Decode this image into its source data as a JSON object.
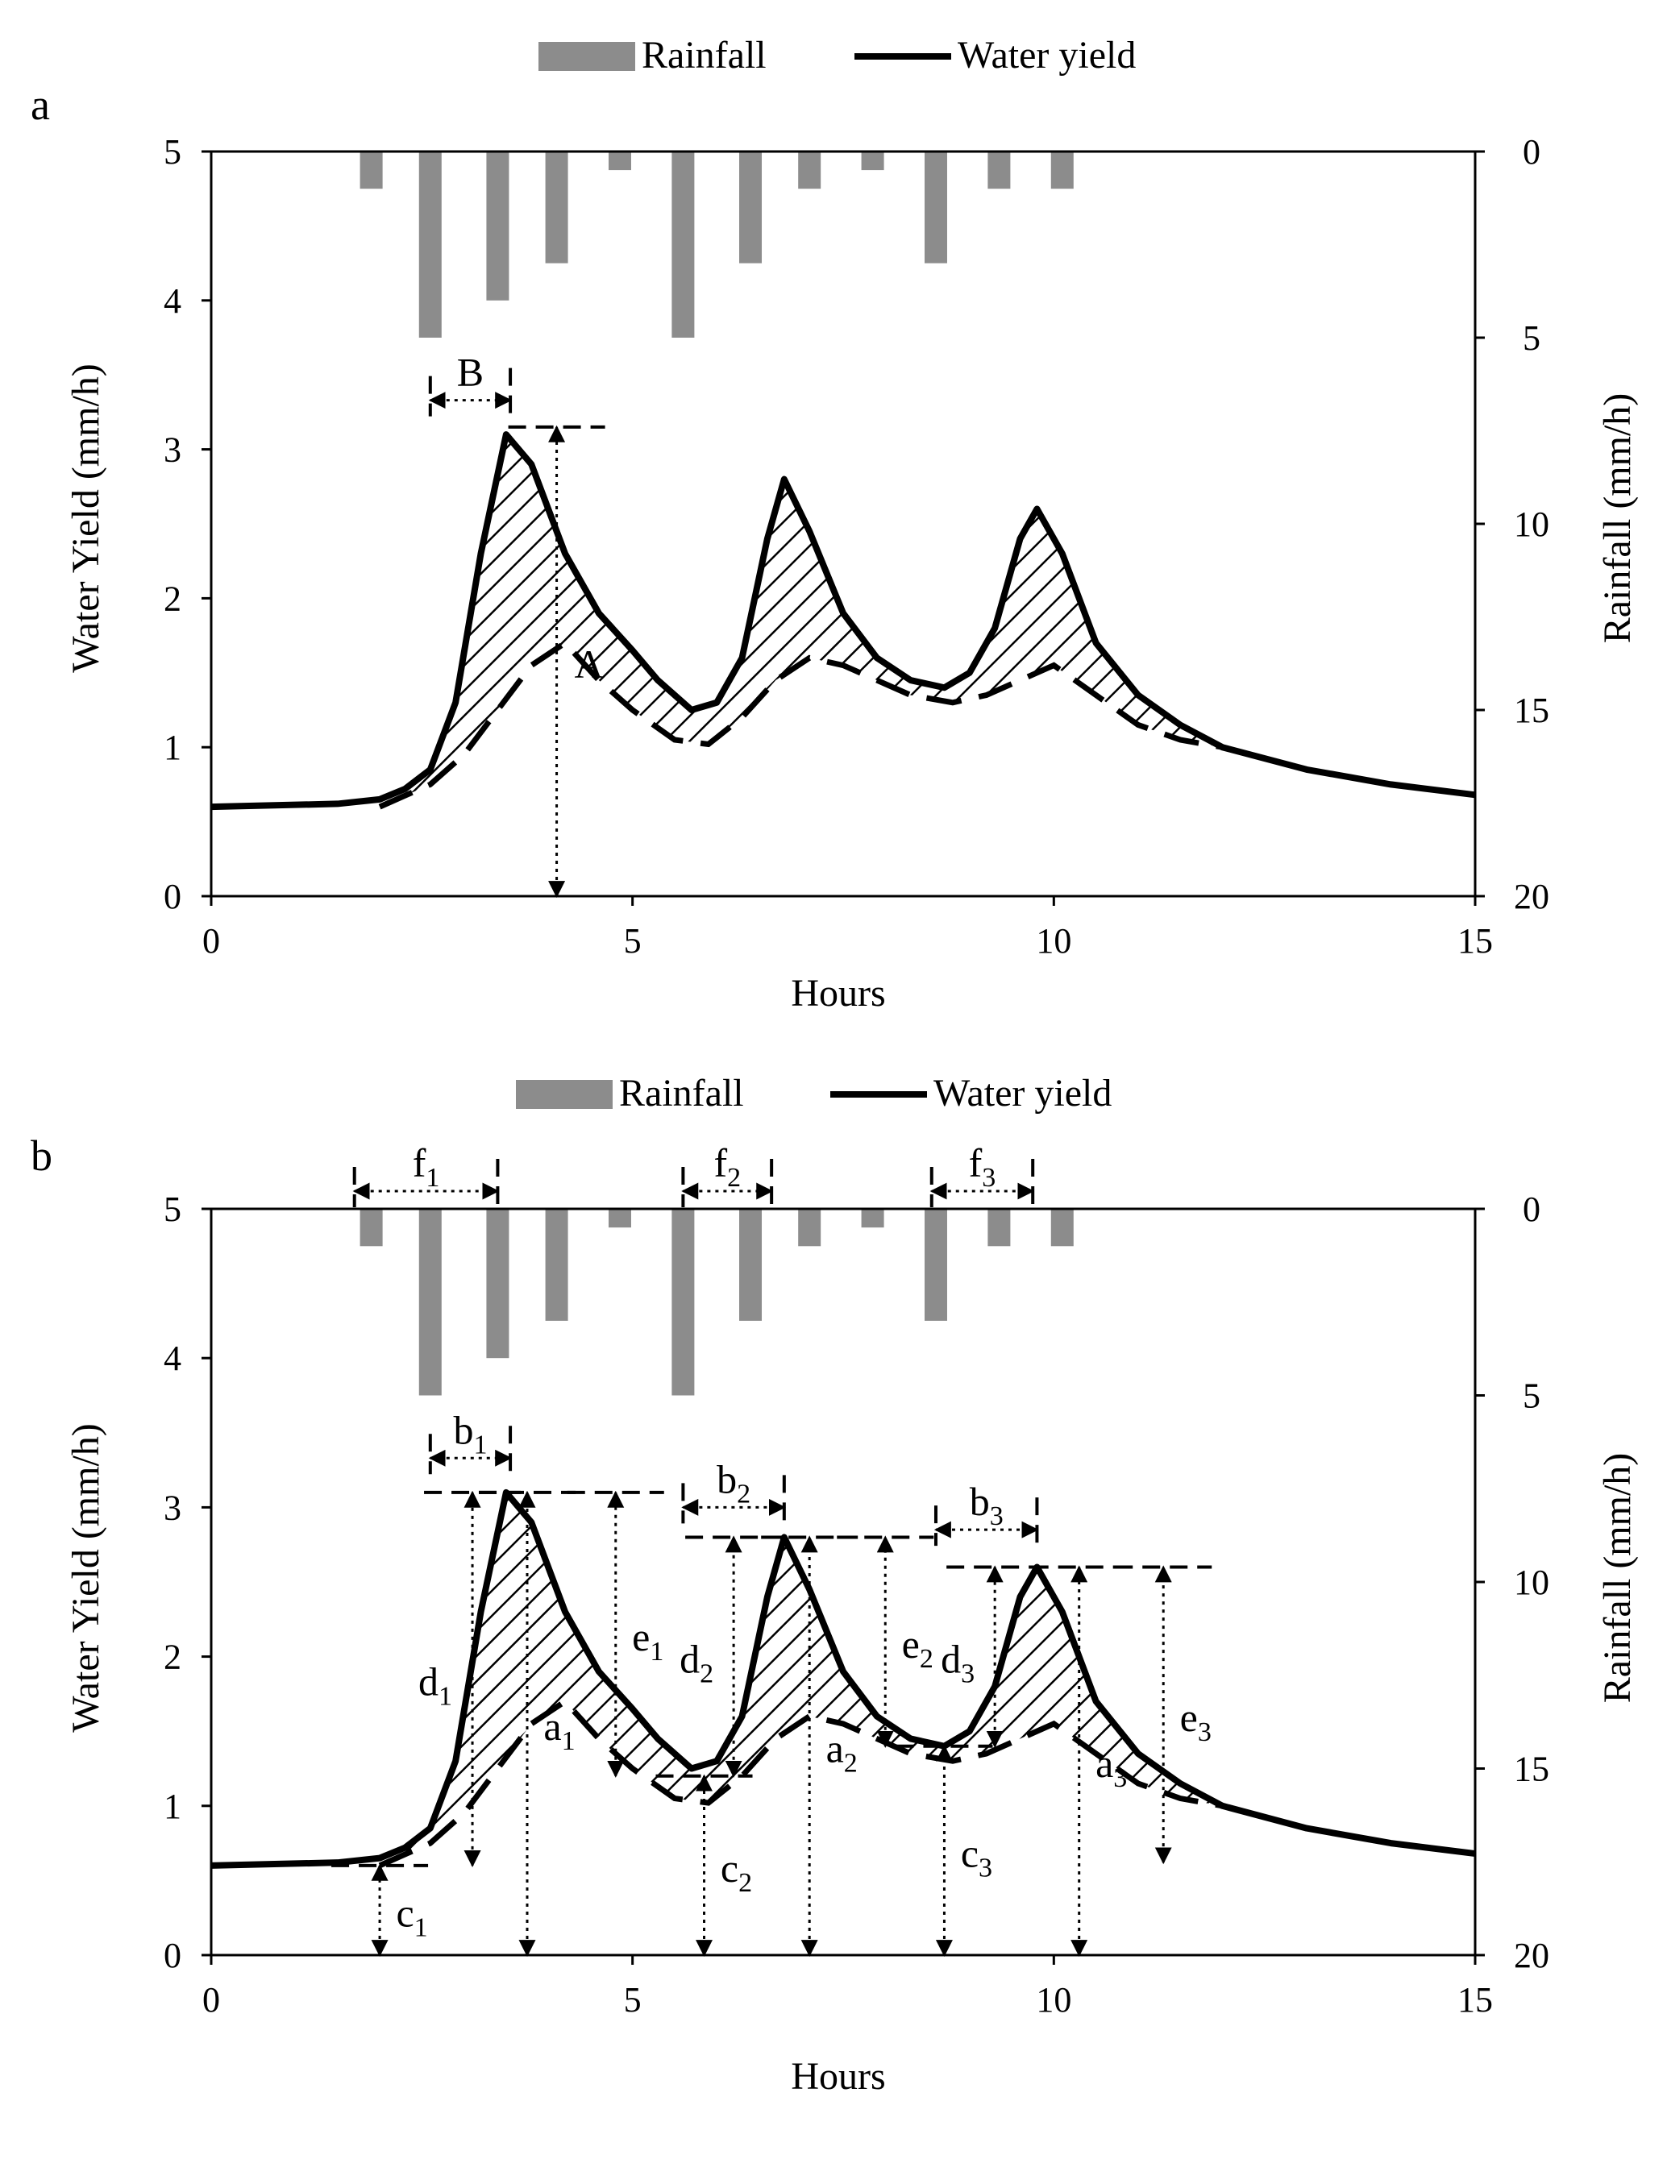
{
  "legend": {
    "rainfall": "Rainfall",
    "water_yield": "Water yield"
  },
  "colors": {
    "rainfall": "#8c8c8c",
    "line": "#000000",
    "axis": "#000000",
    "background": "#ffffff"
  },
  "chart_data": [
    {
      "panel_label": "a",
      "type": "bar+line",
      "xlabel": "Hours",
      "ylabel_left": "Water Yield (mm/h)",
      "ylabel_right": "Rainfall (mm/h)",
      "xlim": [
        0,
        15
      ],
      "ylim_left": [
        0,
        5
      ],
      "ylim_right": [
        20,
        0
      ],
      "xticks": [
        "0",
        "5",
        "10",
        "15"
      ],
      "yticks_left": [
        "0",
        "1",
        "2",
        "3",
        "4",
        "5"
      ],
      "yticks_right": [
        "0",
        "5",
        "10",
        "15",
        "20"
      ],
      "rainfall": {
        "x": [
          1.9,
          2.6,
          3.4,
          4.1,
          4.85,
          5.6,
          6.4,
          7.1,
          7.85,
          8.6,
          9.35,
          10.1
        ],
        "values": [
          1,
          5,
          4,
          3,
          0.5,
          5,
          3,
          1,
          0.5,
          3,
          1,
          1
        ]
      },
      "water_yield": {
        "x": [
          0,
          1.5,
          2.0,
          2.3,
          2.6,
          2.9,
          3.2,
          3.5,
          3.8,
          4.2,
          4.6,
          5.0,
          5.3,
          5.7,
          6.0,
          6.3,
          6.6,
          6.8,
          7.1,
          7.5,
          7.9,
          8.3,
          8.7,
          9.0,
          9.3,
          9.6,
          9.8,
          10.1,
          10.5,
          11.0,
          11.5,
          12.0,
          13.0,
          14.0,
          15.0
        ],
        "values": [
          0.6,
          0.62,
          0.65,
          0.72,
          0.85,
          1.3,
          2.3,
          3.1,
          2.9,
          2.3,
          1.9,
          1.65,
          1.45,
          1.25,
          1.3,
          1.6,
          2.4,
          2.8,
          2.45,
          1.9,
          1.6,
          1.45,
          1.4,
          1.5,
          1.8,
          2.4,
          2.6,
          2.3,
          1.7,
          1.35,
          1.15,
          1.0,
          0.85,
          0.75,
          0.68
        ]
      },
      "baseflow": {
        "x": [
          2.0,
          2.6,
          3.0,
          3.4,
          3.8,
          4.2,
          4.6,
          5.0,
          5.5,
          5.9,
          6.3,
          6.7,
          7.1,
          7.5,
          7.9,
          8.3,
          8.8,
          9.2,
          9.6,
          10.0,
          10.5,
          11.0,
          11.5,
          12.0
        ],
        "values": [
          0.6,
          0.75,
          0.95,
          1.25,
          1.55,
          1.7,
          1.45,
          1.25,
          1.05,
          1.02,
          1.2,
          1.45,
          1.6,
          1.55,
          1.45,
          1.35,
          1.3,
          1.35,
          1.45,
          1.55,
          1.35,
          1.15,
          1.05,
          1.0
        ]
      },
      "annotations": [
        {
          "label": "B",
          "x_from": 2.6,
          "x_to": 3.55
        },
        {
          "label": "A",
          "x": 4.1,
          "y_from": 0,
          "y_to": 3.15
        }
      ]
    },
    {
      "panel_label": "b",
      "type": "bar+line",
      "xlabel": "Hours",
      "ylabel_left": "Water Yield (mm/h)",
      "ylabel_right": "Rainfall (mm/h)",
      "xlim": [
        0,
        15
      ],
      "ylim_left": [
        0,
        5
      ],
      "ylim_right": [
        20,
        0
      ],
      "xticks": [
        "0",
        "5",
        "10",
        "15"
      ],
      "yticks_left": [
        "0",
        "1",
        "2",
        "3",
        "4",
        "5"
      ],
      "yticks_right": [
        "0",
        "5",
        "10",
        "15",
        "20"
      ],
      "rainfall": {
        "x": [
          1.9,
          2.6,
          3.4,
          4.1,
          4.85,
          5.6,
          6.4,
          7.1,
          7.85,
          8.6,
          9.35,
          10.1
        ],
        "values": [
          1,
          5,
          4,
          3,
          0.5,
          5,
          3,
          1,
          0.5,
          3,
          1,
          1
        ]
      },
      "water_yield": {
        "x": [
          0,
          1.5,
          2.0,
          2.3,
          2.6,
          2.9,
          3.2,
          3.5,
          3.8,
          4.2,
          4.6,
          5.0,
          5.3,
          5.7,
          6.0,
          6.3,
          6.6,
          6.8,
          7.1,
          7.5,
          7.9,
          8.3,
          8.7,
          9.0,
          9.3,
          9.6,
          9.8,
          10.1,
          10.5,
          11.0,
          11.5,
          12.0,
          13.0,
          14.0,
          15.0
        ],
        "values": [
          0.6,
          0.62,
          0.65,
          0.72,
          0.85,
          1.3,
          2.3,
          3.1,
          2.9,
          2.3,
          1.9,
          1.65,
          1.45,
          1.25,
          1.3,
          1.6,
          2.4,
          2.8,
          2.45,
          1.9,
          1.6,
          1.45,
          1.4,
          1.5,
          1.8,
          2.4,
          2.6,
          2.3,
          1.7,
          1.35,
          1.15,
          1.0,
          0.85,
          0.75,
          0.68
        ]
      },
      "baseflow": {
        "x": [
          2.0,
          2.6,
          3.0,
          3.4,
          3.8,
          4.2,
          4.6,
          5.0,
          5.5,
          5.9,
          6.3,
          6.7,
          7.1,
          7.5,
          7.9,
          8.3,
          8.8,
          9.2,
          9.6,
          10.0,
          10.5,
          11.0,
          11.5,
          12.0
        ],
        "values": [
          0.6,
          0.75,
          0.95,
          1.25,
          1.55,
          1.7,
          1.45,
          1.25,
          1.05,
          1.02,
          1.2,
          1.45,
          1.6,
          1.55,
          1.45,
          1.35,
          1.3,
          1.35,
          1.45,
          1.55,
          1.35,
          1.15,
          1.05,
          1.0
        ]
      },
      "annotations": [
        {
          "label": "f",
          "sub": "1",
          "x_from": 1.7,
          "x_to": 3.4
        },
        {
          "label": "f",
          "sub": "2",
          "x_from": 5.6,
          "x_to": 6.65
        },
        {
          "label": "f",
          "sub": "3",
          "x_from": 8.55,
          "x_to": 9.75
        },
        {
          "label": "b",
          "sub": "1",
          "x_from": 2.6,
          "x_to": 3.55
        },
        {
          "label": "b",
          "sub": "2",
          "x_from": 5.6,
          "x_to": 6.8
        },
        {
          "label": "b",
          "sub": "3",
          "x_from": 8.6,
          "x_to": 9.8
        },
        {
          "label": "a",
          "sub": "1",
          "x": 3.75,
          "y_from": 0,
          "y_to": 3.1
        },
        {
          "label": "a",
          "sub": "2",
          "x": 7.1,
          "y_from": 0,
          "y_to": 2.8
        },
        {
          "label": "a",
          "sub": "3",
          "x": 10.3,
          "y_from": 0,
          "y_to": 2.6
        },
        {
          "label": "c",
          "sub": "1",
          "x": 2.0,
          "y_from": 0,
          "y_to": 0.6
        },
        {
          "label": "c",
          "sub": "2",
          "x": 5.85,
          "y_from": 0,
          "y_to": 1.2
        },
        {
          "label": "c",
          "sub": "3",
          "x": 8.7,
          "y_from": 0,
          "y_to": 1.4
        },
        {
          "label": "d",
          "sub": "1",
          "x": 3.1,
          "y_from": 0.6,
          "y_to": 3.1
        },
        {
          "label": "d",
          "sub": "2",
          "x": 6.2,
          "y_from": 1.2,
          "y_to": 2.8
        },
        {
          "label": "d",
          "sub": "3",
          "x": 9.3,
          "y_from": 1.4,
          "y_to": 2.6
        },
        {
          "label": "e",
          "sub": "1",
          "x": 4.8,
          "y_from": 1.2,
          "y_to": 3.1
        },
        {
          "label": "e",
          "sub": "2",
          "x": 8.0,
          "y_from": 1.4,
          "y_to": 2.8
        },
        {
          "label": "e",
          "sub": "3",
          "x": 11.3,
          "y_from": 0.62,
          "y_to": 2.6
        }
      ]
    }
  ]
}
